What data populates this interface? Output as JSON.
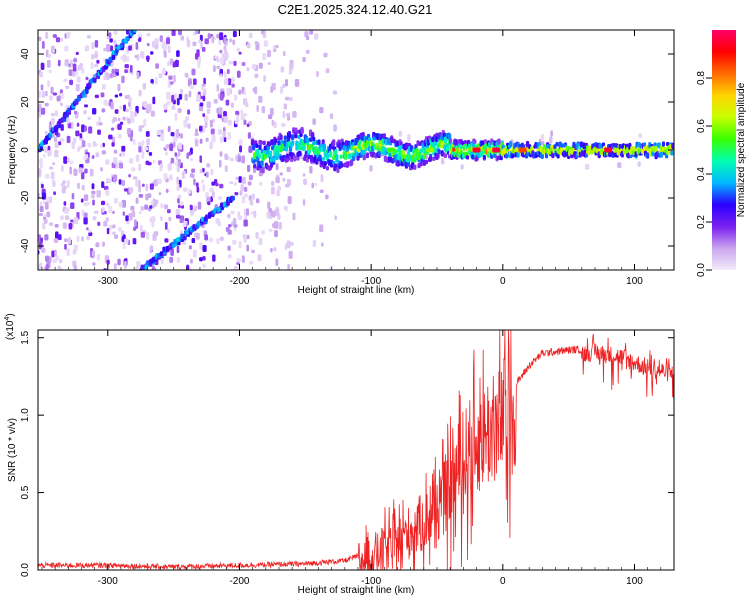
{
  "title": "C2E1.2025.324.12.40.G21",
  "chart_data": [
    {
      "type": "heatmap",
      "name": "spectrogram",
      "xlabel": "Height of straight line (km)",
      "ylabel": "Frequency (Hz)",
      "xlim": [
        -353,
        130
      ],
      "ylim": [
        -50,
        50
      ],
      "xticks": [
        -300,
        -200,
        -100,
        0,
        100
      ],
      "yticks": [
        -40,
        -20,
        0,
        20,
        40
      ],
      "colorbar": {
        "label": "Normalized spectral amplitude",
        "range": [
          0.0,
          1.0
        ],
        "ticks": [
          "0.0",
          "0.2",
          "0.4",
          "0.6",
          "0.8"
        ],
        "colors": [
          "#f4ecfb",
          "#c9a4ee",
          "#7a1ff0",
          "#2a00ff",
          "#00b8ff",
          "#00ffb0",
          "#38ff00",
          "#c8ff00",
          "#ffd400",
          "#ff6a00",
          "#ff0000",
          "#ff006a"
        ]
      },
      "features": [
        {
          "label": "carrier line",
          "x_range": [
            -190,
            130
          ],
          "freq": 0
        },
        {
          "label": "diagonal streak upper",
          "x_from": -353,
          "x_to": -280,
          "f_from": 0,
          "f_to": 50
        },
        {
          "label": "diagonal streak lower",
          "x_from": -275,
          "x_to": -205,
          "f_from": -50,
          "f_to": -20
        }
      ]
    },
    {
      "type": "line",
      "name": "snr",
      "xlabel": "Height of straight line (km)",
      "ylabel": "SNR (10 * v/v)",
      "scale_label": "(x10",
      "scale_exp": "4",
      "xlim": [
        -353,
        130
      ],
      "ylim": [
        0.0,
        1.55
      ],
      "xticks": [
        -300,
        -200,
        -100,
        0,
        100
      ],
      "yticks": [
        0.0,
        0.5,
        1.0,
        1.5
      ],
      "ytick_labels": [
        "0.0",
        "0.5",
        "1.0",
        "1.5"
      ],
      "color": "#ee2222",
      "envelope": [
        [
          -353,
          0.03
        ],
        [
          -300,
          0.03
        ],
        [
          -250,
          0.02
        ],
        [
          -200,
          0.03
        ],
        [
          -150,
          0.04
        ],
        [
          -120,
          0.06
        ],
        [
          -100,
          0.12
        ],
        [
          -80,
          0.22
        ],
        [
          -60,
          0.35
        ],
        [
          -45,
          0.5
        ],
        [
          -35,
          0.7
        ],
        [
          -25,
          0.85
        ],
        [
          -15,
          0.95
        ],
        [
          -5,
          1.0
        ],
        [
          0,
          1.05
        ],
        [
          10,
          1.2
        ],
        [
          20,
          1.32
        ],
        [
          30,
          1.4
        ],
        [
          50,
          1.42
        ],
        [
          70,
          1.43
        ],
        [
          90,
          1.4
        ],
        [
          110,
          1.33
        ],
        [
          130,
          1.29
        ]
      ]
    }
  ]
}
